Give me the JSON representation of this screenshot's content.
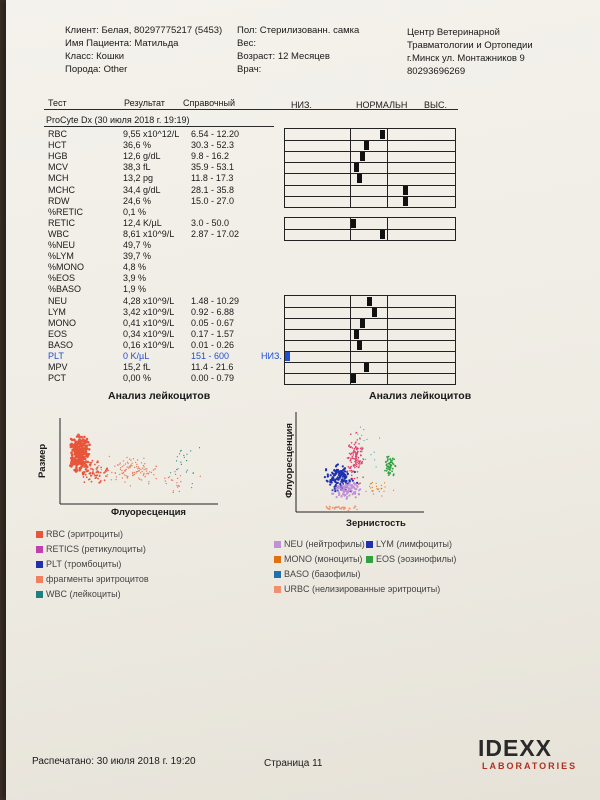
{
  "header": {
    "client": "Клиент: Белая, 80297775217 (5453)",
    "patient": "Имя Пациента: Матильда",
    "class": "Класс: Кошки",
    "breed": "Порода: Other",
    "sex": "Пол: Стерилизованн. самка",
    "weight": "Вес:",
    "age": "Возраст: 12 Месяцев",
    "doctor": "Врач:",
    "clinic": [
      "Центр Ветеринарной",
      "Травматологии и Ортопедии",
      "г.Минск ул. Монтажников 9",
      "80293696269"
    ]
  },
  "table_header": {
    "test": "Тест",
    "result": "Результат",
    "ref": "Справочный",
    "low": "НИЗ.",
    "normal": "НОРМАЛЬН",
    "high": "ВЫС."
  },
  "analyzer": "ProCyte Dx (30 июля 2018 г. 19:19)",
  "rows": [
    {
      "test": "RBC",
      "result": "9,55 x10^12/L",
      "ref": "6.54 - 12.20",
      "flag": "",
      "bar": "g1",
      "marker": 0.58
    },
    {
      "test": "HCT",
      "result": "36,6 %",
      "ref": "30.3 - 52.3",
      "flag": "",
      "bar": "g1",
      "marker": 0.48
    },
    {
      "test": "HGB",
      "result": "12,6 g/dL",
      "ref": "9.8 - 16.2",
      "flag": "",
      "bar": "g1",
      "marker": 0.46
    },
    {
      "test": "MCV",
      "result": "38,3 fL",
      "ref": "35.9 - 53.1",
      "flag": "",
      "bar": "g1",
      "marker": 0.42
    },
    {
      "test": "MCH",
      "result": "13,2 pg",
      "ref": "11.8 - 17.3",
      "flag": "",
      "bar": "g1",
      "marker": 0.44
    },
    {
      "test": "MCHC",
      "result": "34,4 g/dL",
      "ref": "28.1 - 35.8",
      "flag": "",
      "bar": "g1",
      "marker": 0.72
    },
    {
      "test": "RDW",
      "result": "24,6 %",
      "ref": "15.0 - 27.0",
      "flag": "",
      "bar": "g1",
      "marker": 0.72
    },
    {
      "test": "%RETIC",
      "result": "0,1 %",
      "ref": "",
      "flag": "",
      "bar": "",
      "marker": null
    },
    {
      "test": "RETIC",
      "result": "12,4 K/µL",
      "ref": "3.0 - 50.0",
      "flag": "",
      "bar": "g2",
      "marker": 0.4
    },
    {
      "test": "WBC",
      "result": "8,61 x10^9/L",
      "ref": "2.87 - 17.02",
      "flag": "",
      "bar": "g2",
      "marker": 0.58
    },
    {
      "test": "%NEU",
      "result": "49,7 %",
      "ref": "",
      "flag": "",
      "bar": "",
      "marker": null
    },
    {
      "test": "%LYM",
      "result": "39,7 %",
      "ref": "",
      "flag": "",
      "bar": "",
      "marker": null
    },
    {
      "test": "%MONO",
      "result": "4,8 %",
      "ref": "",
      "flag": "",
      "bar": "",
      "marker": null
    },
    {
      "test": "%EOS",
      "result": "3,9 %",
      "ref": "",
      "flag": "",
      "bar": "",
      "marker": null
    },
    {
      "test": "%BASO",
      "result": "1,9 %",
      "ref": "",
      "flag": "",
      "bar": "",
      "marker": null
    },
    {
      "test": "NEU",
      "result": "4,28 x10^9/L",
      "ref": "1.48 - 10.29",
      "flag": "",
      "bar": "g3",
      "marker": 0.5
    },
    {
      "test": "LYM",
      "result": "3,42 x10^9/L",
      "ref": "0.92 - 6.88",
      "flag": "",
      "bar": "g3",
      "marker": 0.53
    },
    {
      "test": "MONO",
      "result": "0,41 x10^9/L",
      "ref": "0.05 - 0.67",
      "flag": "",
      "bar": "g3",
      "marker": 0.46
    },
    {
      "test": "EOS",
      "result": "0,34 x10^9/L",
      "ref": "0.17 - 1.57",
      "flag": "",
      "bar": "g3",
      "marker": 0.42
    },
    {
      "test": "BASO",
      "result": "0,16 x10^9/L",
      "ref": "0.01 - 0.26",
      "flag": "",
      "bar": "g3",
      "marker": 0.44
    },
    {
      "test": "PLT",
      "result": "0 K/µL",
      "ref": "151 - 600",
      "flag": "НИЗ.",
      "bar": "g3",
      "marker": 0.0,
      "low": true
    },
    {
      "test": "MPV",
      "result": "15,2 fL",
      "ref": "11.4 - 21.6",
      "flag": "",
      "bar": "g3",
      "marker": 0.48
    },
    {
      "test": "PCT",
      "result": "0,00 %",
      "ref": "0.00 - 0.79",
      "flag": "",
      "bar": "g3",
      "marker": 0.4
    }
  ],
  "chart_left": {
    "title": "Анализ лейкоцитов",
    "ylabel": "Размер",
    "xlabel": "Флуоресценция"
  },
  "chart_right": {
    "title": "Анализ лейкоцитов",
    "ylabel": "Флуоресценция",
    "xlabel": "Зернистость"
  },
  "legend_left": [
    {
      "label": "RBC (эритроциты)",
      "color": "#e8553a"
    },
    {
      "label": "RETICS (ретикулоциты)",
      "color": "#c040b0"
    },
    {
      "label": "PLT (тромбоциты)",
      "color": "#2030b0"
    },
    {
      "label": "фрагменты эритроцитов",
      "color": "#f08060"
    },
    {
      "label": "WBC (лейкоциты)",
      "color": "#208080"
    }
  ],
  "legend_right": [
    {
      "label": "NEU (нейтрофилы)",
      "color": "#c090d8"
    },
    {
      "label": "MONO (моноциты)",
      "color": "#e07010"
    },
    {
      "label": "BASO (базофилы)",
      "color": "#2070b0"
    },
    {
      "label": "URBC (нелизированные эритроциты)",
      "color": "#f09070"
    }
  ],
  "legend_right2": [
    {
      "label": "LYM (лимфоциты)",
      "color": "#2030b0"
    },
    {
      "label": "EOS (эозинофилы)",
      "color": "#30a040"
    }
  ],
  "footer": {
    "printed": "Распечатано: 30 июля 2018 г. 19:20",
    "page": "Страница 11",
    "logo_top": "IDEXX",
    "logo_bottom": "LABORATORIES"
  }
}
